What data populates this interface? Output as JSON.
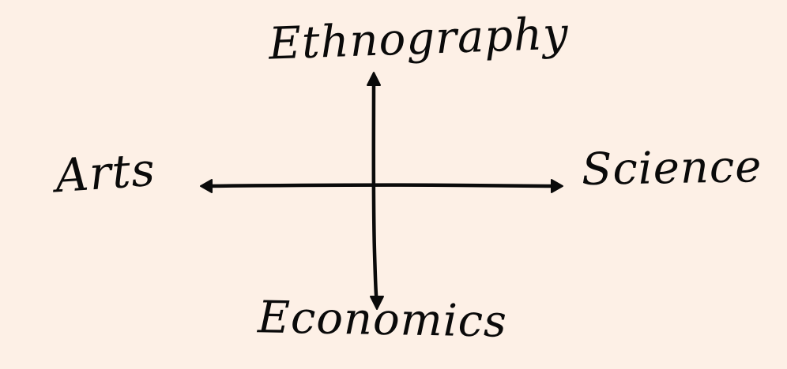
{
  "diagram": {
    "background_color": "#fdf0e6",
    "ink_color": "#0a0a0a",
    "axes": {
      "top": "Ethnography",
      "bottom": "Economics",
      "left": "Arts",
      "right": "Science"
    }
  }
}
